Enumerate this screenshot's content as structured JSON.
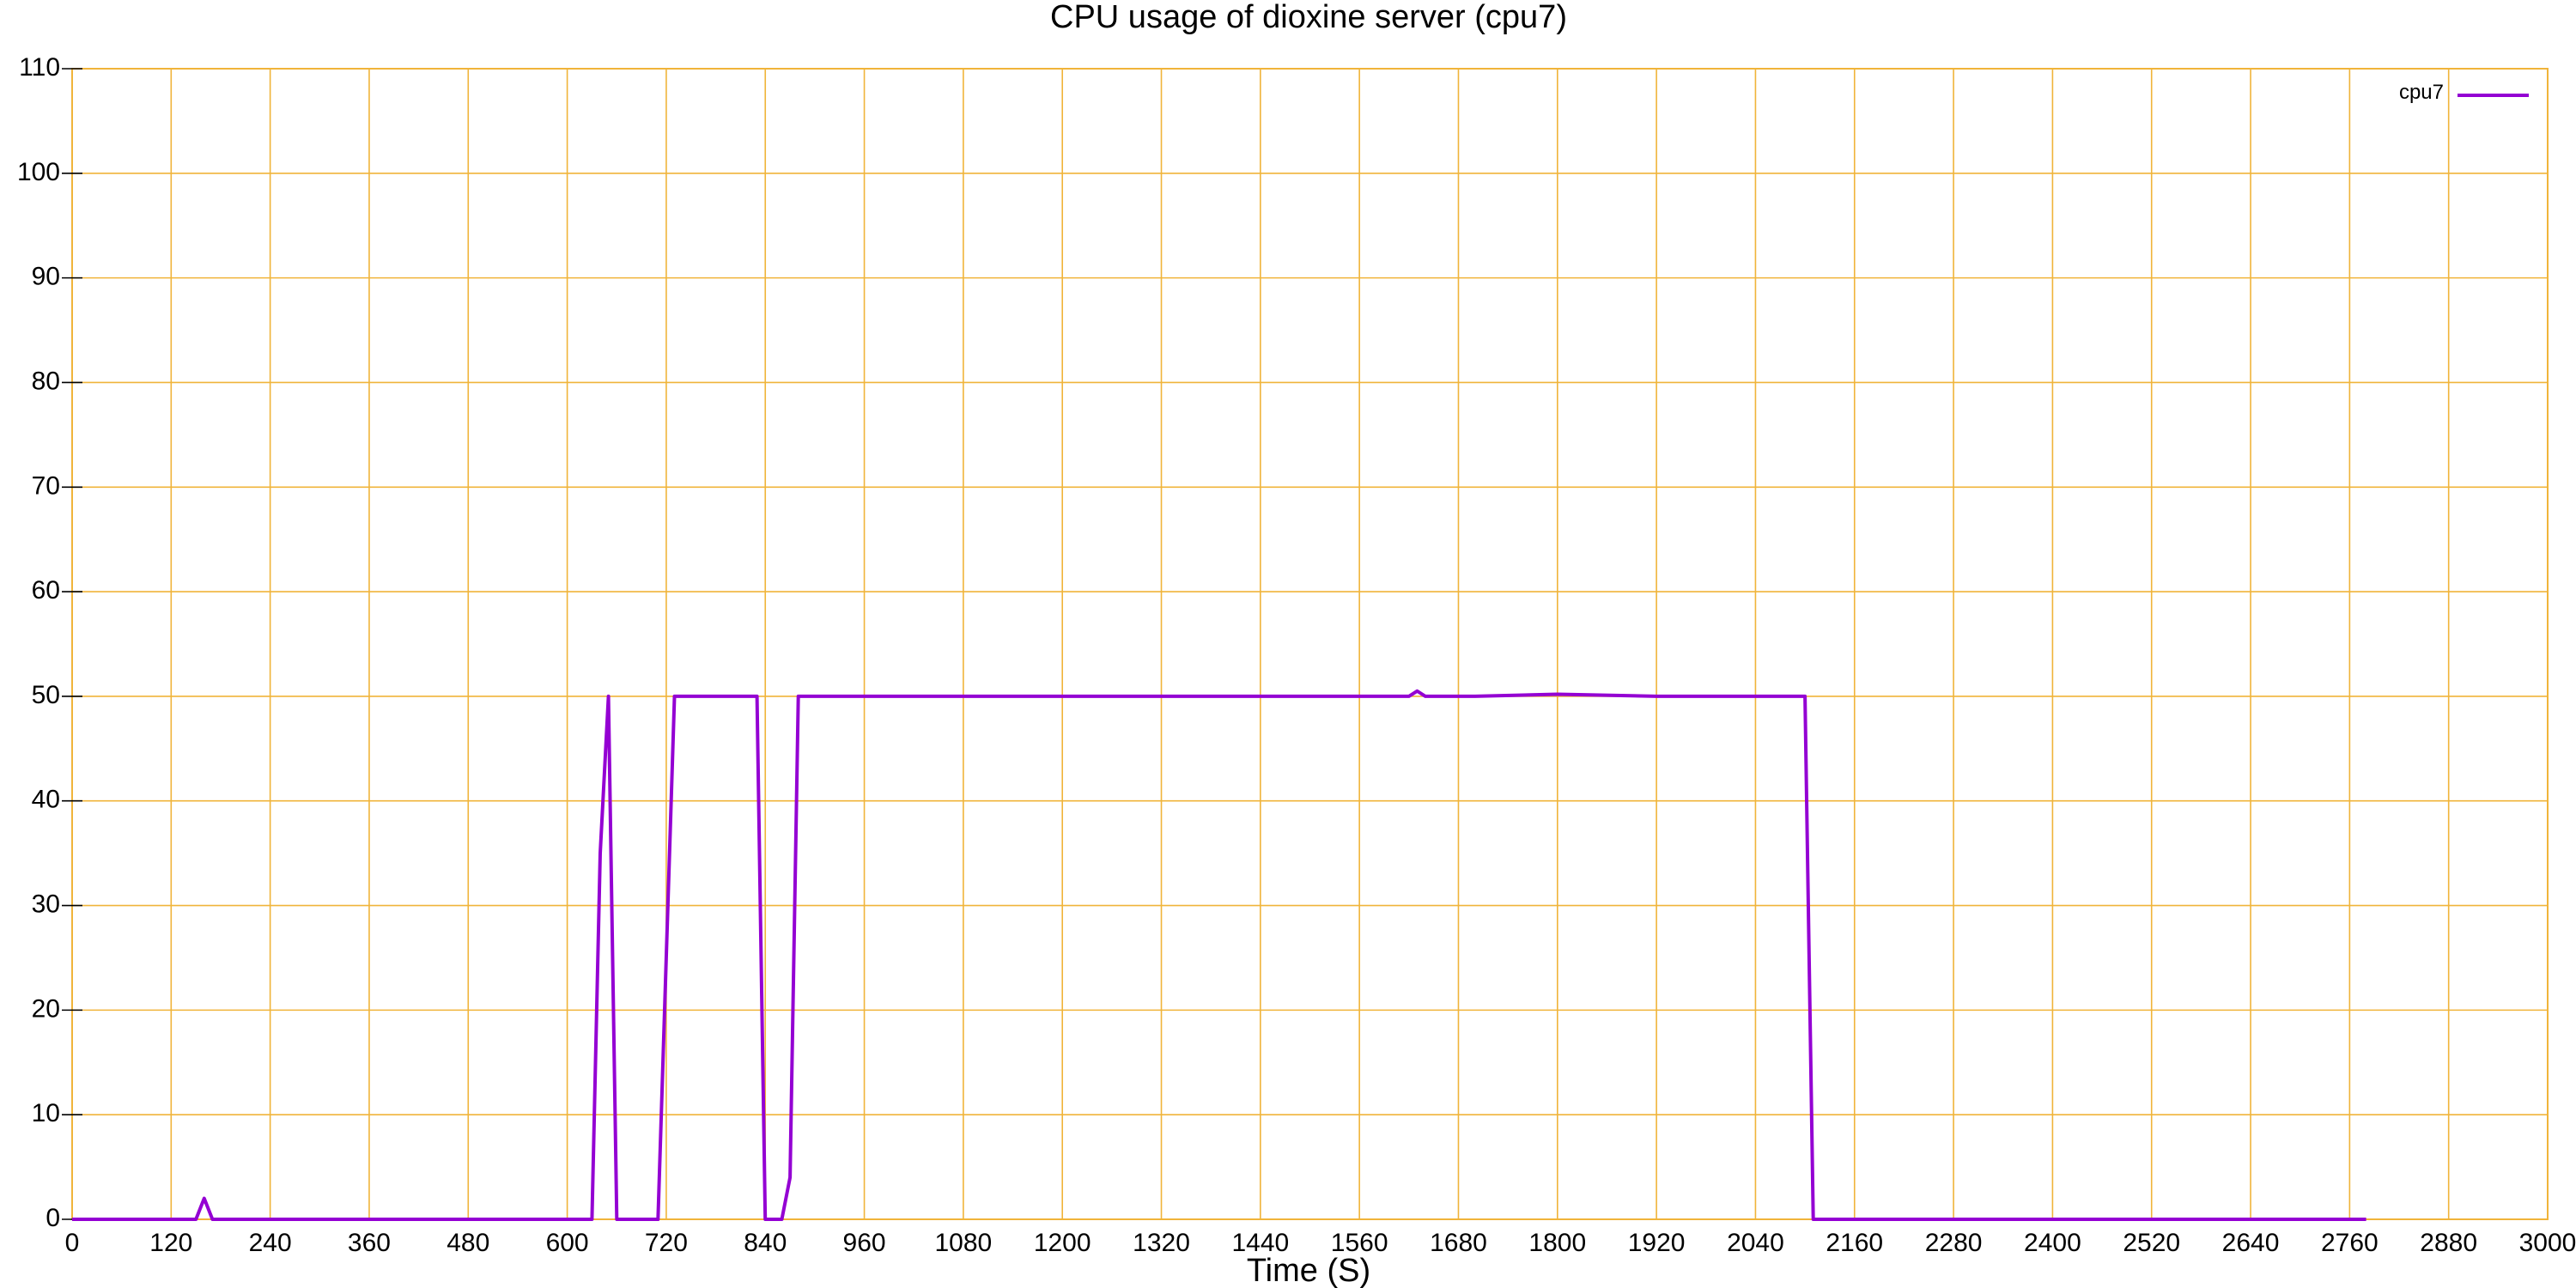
{
  "chart_data": {
    "type": "line",
    "title": "CPU usage of dioxine server (cpu7)",
    "xlabel": "Time (S)",
    "ylabel": "",
    "xlim": [
      0,
      3000
    ],
    "ylim": [
      0,
      110
    ],
    "x_ticks": [
      0,
      120,
      240,
      360,
      480,
      600,
      720,
      840,
      960,
      1080,
      1200,
      1320,
      1440,
      1560,
      1680,
      1800,
      1920,
      2040,
      2160,
      2280,
      2400,
      2520,
      2640,
      2760,
      2880,
      3000
    ],
    "y_ticks": [
      0,
      10,
      20,
      30,
      40,
      50,
      60,
      70,
      80,
      90,
      100,
      110
    ],
    "grid": true,
    "legend_position": "top-right",
    "series": [
      {
        "name": "cpu7",
        "color": "#9400d3",
        "points": [
          [
            0,
            0
          ],
          [
            100,
            0
          ],
          [
            140,
            0
          ],
          [
            150,
            0
          ],
          [
            160,
            2
          ],
          [
            170,
            0
          ],
          [
            180,
            0
          ],
          [
            300,
            0
          ],
          [
            400,
            0
          ],
          [
            500,
            0
          ],
          [
            600,
            0
          ],
          [
            630,
            0
          ],
          [
            640,
            35
          ],
          [
            650,
            50
          ],
          [
            660,
            0
          ],
          [
            680,
            0
          ],
          [
            700,
            0
          ],
          [
            710,
            0
          ],
          [
            730,
            50
          ],
          [
            800,
            50
          ],
          [
            830,
            50
          ],
          [
            840,
            0
          ],
          [
            850,
            0
          ],
          [
            860,
            0
          ],
          [
            870,
            4
          ],
          [
            880,
            50
          ],
          [
            960,
            50
          ],
          [
            1080,
            50
          ],
          [
            1200,
            50
          ],
          [
            1320,
            50
          ],
          [
            1440,
            50
          ],
          [
            1560,
            50
          ],
          [
            1620,
            50
          ],
          [
            1630,
            50.5
          ],
          [
            1640,
            50
          ],
          [
            1700,
            50
          ],
          [
            1800,
            50.2
          ],
          [
            1920,
            50
          ],
          [
            2040,
            50
          ],
          [
            2100,
            50
          ],
          [
            2110,
            0
          ],
          [
            2160,
            0
          ],
          [
            2280,
            0
          ],
          [
            2400,
            0
          ],
          [
            2520,
            0
          ],
          [
            2640,
            0
          ],
          [
            2770,
            0
          ],
          [
            2780,
            0
          ]
        ]
      }
    ]
  }
}
